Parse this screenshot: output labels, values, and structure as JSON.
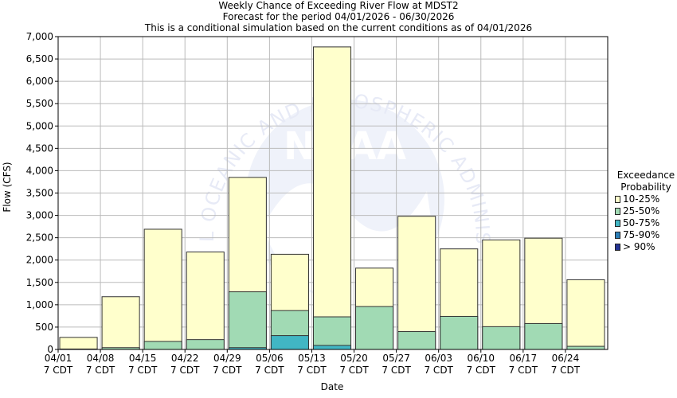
{
  "titles": {
    "line1": "Weekly Chance of Exceeding River Flow at MDST2",
    "line2": "Forecast for the period 04/01/2026 - 06/30/2026",
    "line3": "This is a conditional simulation based on the current conditions as of 04/01/2026"
  },
  "watermark": {
    "arc_text": "NATIONAL OCEANIC AND ATMOSPHERIC ADMINISTRATION",
    "logo_letters": "NOAA"
  },
  "colors": {
    "p10_25": "#ffffcc",
    "p25_50": "#a1dab4",
    "p50_75": "#41b6c4",
    "p75_90": "#2c7fb8",
    "p90": "#253494"
  },
  "chart_data": {
    "type": "bar",
    "xlabel": "Date",
    "ylabel": "Flow (CFS)",
    "ylim": [
      0,
      7000
    ],
    "yticks": [
      0,
      500,
      1000,
      1500,
      2000,
      2500,
      3000,
      3500,
      4000,
      4500,
      5000,
      5500,
      6000,
      6500,
      7000
    ],
    "ytick_labels": [
      "0",
      "500",
      "1,000",
      "1,500",
      "2,000",
      "2,500",
      "3,000",
      "3,500",
      "4,000",
      "4,500",
      "5,000",
      "5,500",
      "6,000",
      "6,500",
      "7,000"
    ],
    "grid": true,
    "legend_position": "right",
    "legend_title": [
      "Exceedance",
      "Probability"
    ],
    "x_ticks": [
      {
        "date": "04/01",
        "tz": "7 CDT"
      },
      {
        "date": "04/08",
        "tz": "7 CDT"
      },
      {
        "date": "04/15",
        "tz": "7 CDT"
      },
      {
        "date": "04/22",
        "tz": "7 CDT"
      },
      {
        "date": "04/29",
        "tz": "7 CDT"
      },
      {
        "date": "05/06",
        "tz": "7 CDT"
      },
      {
        "date": "05/13",
        "tz": "7 CDT"
      },
      {
        "date": "05/20",
        "tz": "7 CDT"
      },
      {
        "date": "05/27",
        "tz": "7 CDT"
      },
      {
        "date": "06/03",
        "tz": "7 CDT"
      },
      {
        "date": "06/10",
        "tz": "7 CDT"
      },
      {
        "date": "06/17",
        "tz": "7 CDT"
      },
      {
        "date": "06/24",
        "tz": "7 CDT"
      }
    ],
    "series": [
      {
        "name": "10-25%",
        "color": "#ffffcc",
        "values": [
          270,
          1180,
          2690,
          2180,
          3850,
          2130,
          6770,
          1820,
          2980,
          2250,
          2450,
          2490,
          1560
        ]
      },
      {
        "name": "25-50%",
        "color": "#a1dab4",
        "values": [
          10,
          40,
          180,
          220,
          1290,
          870,
          730,
          960,
          400,
          740,
          510,
          580,
          70
        ]
      },
      {
        "name": "50-75%",
        "color": "#41b6c4",
        "values": [
          0,
          0,
          0,
          0,
          40,
          310,
          90,
          0,
          0,
          0,
          0,
          0,
          0
        ]
      },
      {
        "name": "75-90%",
        "color": "#2c7fb8",
        "values": [
          0,
          0,
          0,
          0,
          0,
          0,
          0,
          0,
          0,
          0,
          0,
          0,
          0
        ]
      },
      {
        "name": "> 90%",
        "color": "#253494",
        "values": [
          0,
          0,
          0,
          0,
          0,
          0,
          0,
          0,
          0,
          0,
          0,
          0,
          0
        ]
      }
    ]
  }
}
